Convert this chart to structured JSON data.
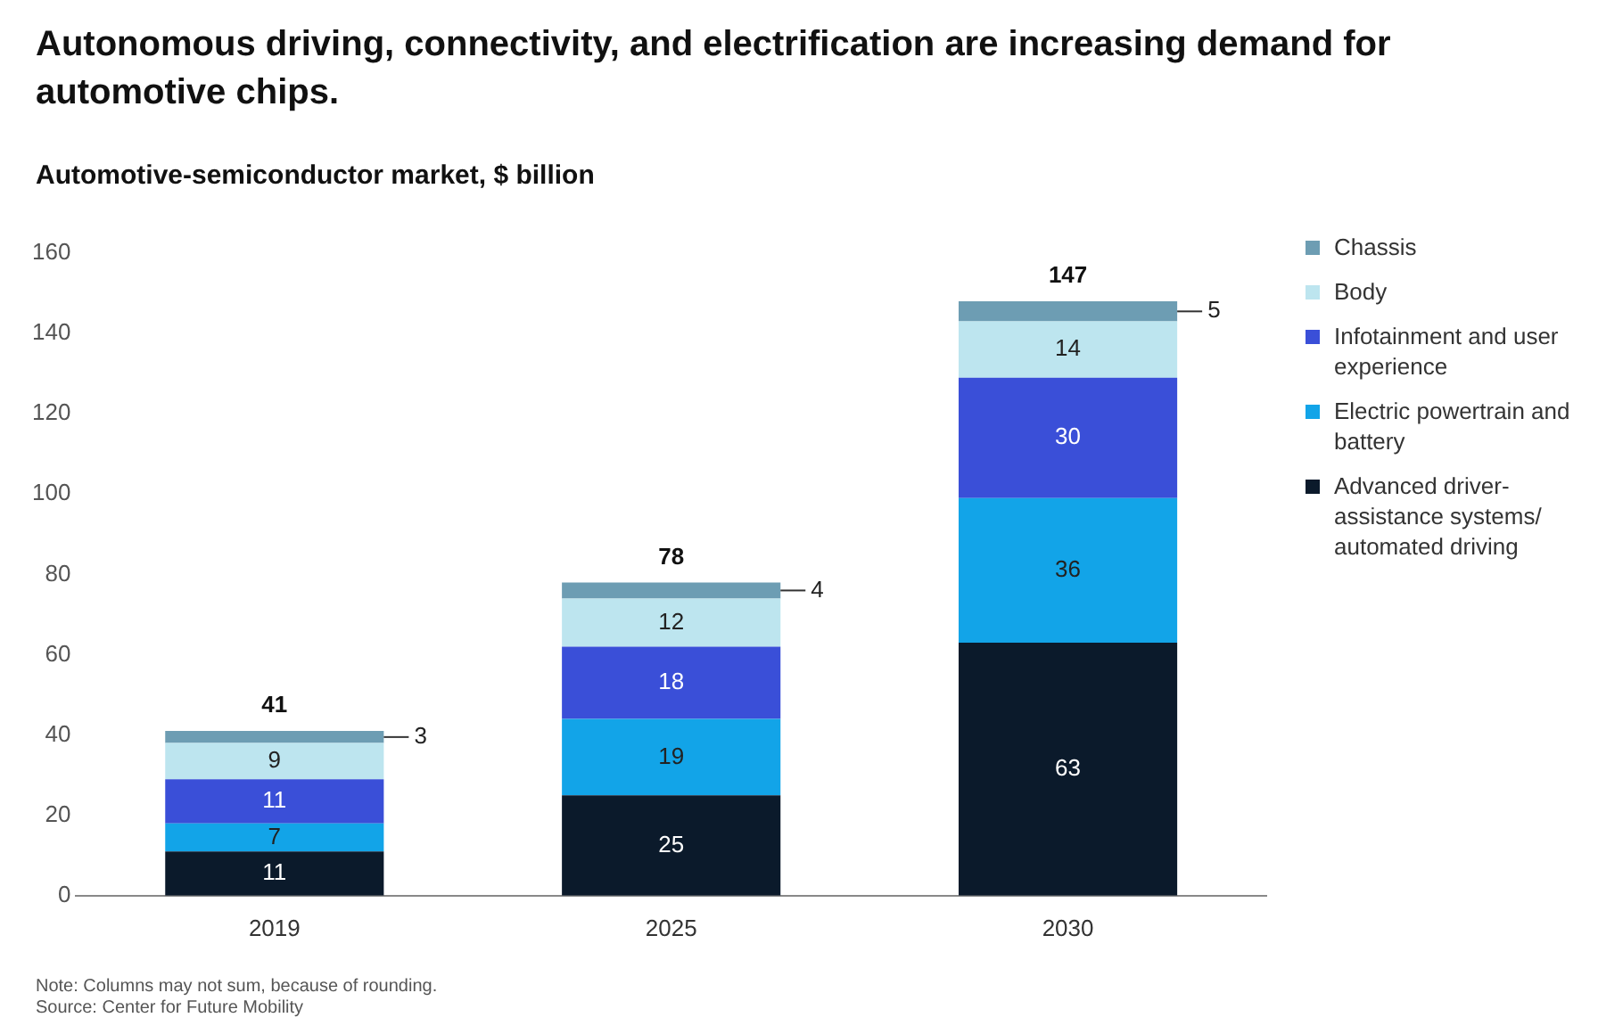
{
  "chart_data": {
    "type": "bar",
    "title": "Autonomous driving, connectivity, and electrification are increasing demand for automotive chips.",
    "subtitle": "Automotive-semiconductor market, $ billion",
    "categories": [
      "2019",
      "2025",
      "2030"
    ],
    "stacked": true,
    "series": [
      {
        "name": "Advanced driver-assistance systems/ automated driving",
        "color": "#0b1a2b",
        "values": [
          11,
          25,
          63
        ]
      },
      {
        "name": "Electric powertrain and battery",
        "color": "#12a4e8",
        "values": [
          7,
          19,
          36
        ]
      },
      {
        "name": "Infotainment and user experience",
        "color": "#3a4fd8",
        "values": [
          11,
          18,
          30
        ]
      },
      {
        "name": "Body",
        "color": "#bde5ef",
        "values": [
          9,
          12,
          14
        ]
      },
      {
        "name": "Chassis",
        "color": "#6d9db3",
        "values": [
          3,
          4,
          5
        ]
      }
    ],
    "totals": [
      "41",
      "78",
      "147"
    ],
    "data_labels": true,
    "ylim": [
      0,
      160
    ],
    "yticks": [
      0,
      20,
      40,
      60,
      80,
      100,
      120,
      140,
      160
    ],
    "grid": false,
    "legend": "right",
    "annotations": [
      "Note: Columns may not sum, because of rounding.",
      "Source: Center for Future Mobility"
    ]
  }
}
